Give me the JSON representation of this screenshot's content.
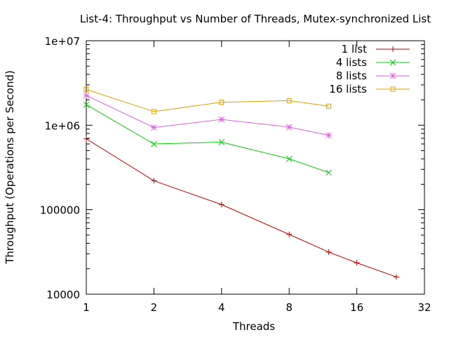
{
  "chart_data": {
    "type": "line",
    "title": "List-4: Throughput vs Number of Threads, Mutex-synchronized List",
    "xlabel": "Threads",
    "ylabel": "Throughput (Operations per Second)",
    "xscale": "log2",
    "yscale": "log10",
    "xlim": [
      1,
      32
    ],
    "ylim": [
      10000,
      10000000
    ],
    "x_ticks": [
      1,
      2,
      4,
      8,
      16,
      32
    ],
    "x_tick_labels": [
      "1",
      "2",
      "4",
      "8",
      "16",
      "32"
    ],
    "y_ticks": [
      10000,
      100000,
      1000000,
      10000000
    ],
    "y_tick_labels": [
      "10000",
      "100000",
      "1e+06",
      "1e+07"
    ],
    "grid": false,
    "legend_position": "top-right",
    "series": [
      {
        "name": "1 list",
        "color": "#c00000",
        "marker": "plus",
        "x": [
          1,
          2,
          4,
          8,
          12,
          16,
          24
        ],
        "y": [
          690000,
          220000,
          115000,
          51000,
          31500,
          23500,
          16000
        ]
      },
      {
        "name": "4 lists",
        "color": "#00d000",
        "marker": "cross",
        "x": [
          1,
          2,
          4,
          8,
          12
        ],
        "y": [
          1750000,
          600000,
          630000,
          400000,
          275000
        ]
      },
      {
        "name": "8 lists",
        "color": "#e060e0",
        "marker": "star",
        "x": [
          1,
          2,
          4,
          8,
          12
        ],
        "y": [
          2250000,
          940000,
          1170000,
          950000,
          760000
        ]
      },
      {
        "name": "16 lists",
        "color": "#e0a000",
        "marker": "square",
        "x": [
          1,
          2,
          4,
          8,
          12
        ],
        "y": [
          2650000,
          1450000,
          1870000,
          1950000,
          1680000
        ]
      }
    ]
  }
}
